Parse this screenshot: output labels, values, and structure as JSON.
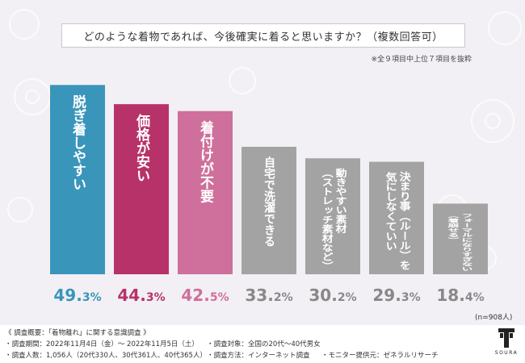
{
  "title": "どのような着物であれば、今後確実に着ると思いますか？（複数回答可）",
  "note": "※全９項目中上位７項目を抜粋",
  "sample_note": "(n=908人)",
  "chart_data": {
    "type": "bar",
    "categories": [
      "脱ぎ着しやすい",
      "価格が安い",
      "着付けが不要",
      "自宅で洗濯できる",
      "動きやすい素材（ストレッチ素材など）",
      "決まり事（ルール）を気にしなくていい",
      "フォーマルになりすぎない（着崩せる）"
    ],
    "category_lines": [
      [
        "脱ぎ着しやすい"
      ],
      [
        "価格が安い"
      ],
      [
        "着付けが不要"
      ],
      [
        "自宅で洗濯できる"
      ],
      [
        "動きやすい素材",
        "（ストレッチ素材など）"
      ],
      [
        "決まり事（ルール）を",
        "気にしなくていい"
      ],
      [
        "フォーマルになりすぎない",
        "（着崩せる）"
      ]
    ],
    "values": [
      49.3,
      44.3,
      42.5,
      33.2,
      30.2,
      29.3,
      18.4
    ],
    "value_labels": [
      [
        "49.",
        "3%"
      ],
      [
        "44.",
        "3%"
      ],
      [
        "42.",
        "5%"
      ],
      [
        "33.",
        "2%"
      ],
      [
        "30.",
        "2%"
      ],
      [
        "29.",
        "3%"
      ],
      [
        "18.",
        "4%"
      ]
    ],
    "colors": [
      "#3a95bb",
      "#b8326a",
      "#cf6f9c",
      "#a3a3a3",
      "#a3a3a3",
      "#a3a3a3",
      "#a3a3a3"
    ],
    "value_colors": [
      "#3a95bb",
      "#b8326a",
      "#cf6f9c",
      "#888888",
      "#888888",
      "#888888",
      "#888888"
    ],
    "ylim": [
      0,
      55
    ]
  },
  "footer": {
    "heading": "《 調査概要：「着物離れ」に関する意識調査 》",
    "period": "・調査期間：2022年11月4日（金）～ 2022年11月5日（土）",
    "subjects": "・調査対象：全国の20代〜40代男女",
    "respondents": "・調査人数：1,056人（20代330人、30代361人、40代365人）",
    "method": "・調査方法：インターネット調査",
    "provider": "・モニター提供元：ゼネラルリサーチ",
    "logo": "SOURA"
  }
}
